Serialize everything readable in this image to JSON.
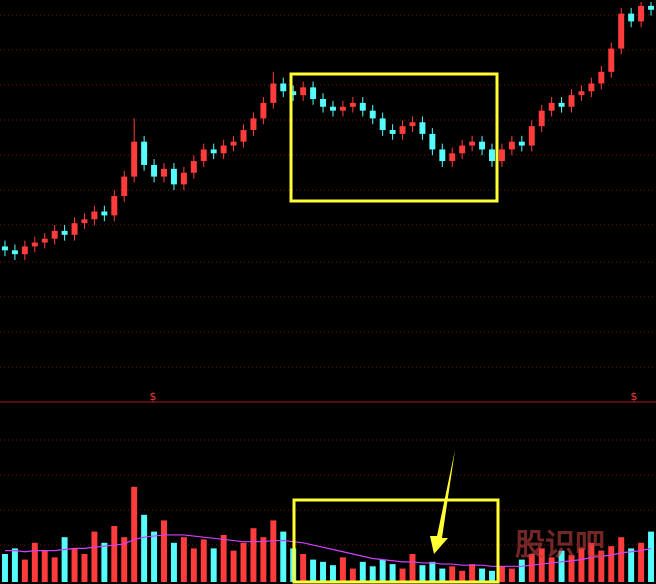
{
  "chart_data": {
    "type": "candlestick",
    "up_color": "#ff3c3c",
    "down_color": "#54fcfc",
    "ylim": [
      0,
      100
    ],
    "open": [
      37,
      36,
      35,
      37,
      38,
      39,
      41,
      40,
      43,
      44,
      46,
      45,
      50,
      55,
      64,
      58,
      55,
      57,
      53,
      56,
      59,
      62,
      61,
      63,
      64,
      67,
      70,
      74,
      79,
      77,
      76,
      78,
      75,
      73,
      72,
      73,
      74,
      72,
      70,
      67,
      66,
      68,
      69,
      66,
      62,
      59,
      61,
      63,
      64,
      62,
      59,
      62,
      64,
      63,
      68,
      72,
      74,
      73,
      76,
      77,
      79,
      82,
      88,
      97,
      95,
      99
    ],
    "close": [
      36,
      35,
      37,
      38,
      39,
      41,
      40,
      43,
      44,
      46,
      45,
      50,
      55,
      64,
      58,
      55,
      57,
      53,
      56,
      59,
      62,
      61,
      63,
      64,
      67,
      70,
      74,
      79,
      77,
      76,
      78,
      75,
      73,
      72,
      73,
      74,
      72,
      70,
      67,
      66,
      68,
      69,
      66,
      62,
      59,
      61,
      63,
      64,
      62,
      59,
      62,
      64,
      63,
      68,
      72,
      74,
      73,
      76,
      77,
      79,
      82,
      88,
      97,
      95,
      99,
      98
    ],
    "high": [
      38.5,
      37.5,
      38.5,
      39.5,
      40.5,
      42.5,
      42.5,
      44.5,
      45.5,
      47.5,
      47.5,
      51.5,
      56.5,
      70,
      65.5,
      59.5,
      58.5,
      58.5,
      57.5,
      60.5,
      63.5,
      63.5,
      64.5,
      65.5,
      68.5,
      71.5,
      75.5,
      82,
      80.5,
      78.5,
      79.5,
      79.5,
      76.5,
      74.5,
      74.5,
      75.5,
      75.5,
      73.5,
      71.5,
      68.5,
      69.5,
      70.5,
      70.5,
      67.5,
      63.5,
      62.5,
      64.5,
      65.5,
      65.5,
      63.5,
      63.5,
      65.5,
      65.5,
      69.5,
      73.5,
      75.5,
      75.5,
      77.5,
      78.5,
      80.5,
      83.5,
      89.5,
      98.5,
      98.5,
      100,
      100
    ],
    "low": [
      34.5,
      33.5,
      33.5,
      35.5,
      36.5,
      37.5,
      38.5,
      38.5,
      41.5,
      42.5,
      43.5,
      43.5,
      48.5,
      53.5,
      56.5,
      53.5,
      53.5,
      51.5,
      51.5,
      54.5,
      57.5,
      59.5,
      59.5,
      61.5,
      62.5,
      65.5,
      68.5,
      72.5,
      75.5,
      74.5,
      74.5,
      73.5,
      71.5,
      70.5,
      70.5,
      71.5,
      70.5,
      68.5,
      65.5,
      64.5,
      64.5,
      66.5,
      64.5,
      60.5,
      57.5,
      57.5,
      59.5,
      61.5,
      60.5,
      57.5,
      57.5,
      60.5,
      61.5,
      61.5,
      66.5,
      70.5,
      71.5,
      71.5,
      74.5,
      75.5,
      77.5,
      80.5,
      86.5,
      93.5,
      93.5,
      96.5
    ],
    "volume": {
      "ylim": [
        0,
        100
      ],
      "ma_color": "#d040ff",
      "values": [
        25,
        30,
        20,
        35,
        28,
        22,
        40,
        30,
        25,
        45,
        35,
        50,
        40,
        85,
        60,
        45,
        55,
        35,
        40,
        30,
        38,
        30,
        42,
        28,
        35,
        48,
        40,
        55,
        45,
        30,
        25,
        20,
        18,
        15,
        22,
        12,
        18,
        14,
        20,
        16,
        12,
        25,
        15,
        18,
        12,
        14,
        10,
        16,
        12,
        10,
        14,
        12,
        20,
        25,
        30,
        22,
        28,
        24,
        30,
        35,
        28,
        32,
        40,
        30,
        35,
        45
      ],
      "ma": [
        28,
        28,
        27,
        28,
        28,
        28,
        29,
        30,
        30,
        31,
        32,
        33,
        34,
        38,
        40,
        41,
        42,
        42,
        42,
        41,
        40,
        39,
        38,
        37,
        36,
        36,
        36,
        37,
        37,
        36,
        35,
        33,
        31,
        29,
        27,
        25,
        23,
        21,
        20,
        19,
        18,
        18,
        17,
        17,
        16,
        16,
        15,
        15,
        15,
        14,
        14,
        14,
        14,
        15,
        16,
        17,
        18,
        19,
        20,
        22,
        23,
        24,
        26,
        27,
        28,
        30
      ]
    },
    "markers": [
      "$",
      "$"
    ],
    "watermark": "股识吧"
  }
}
